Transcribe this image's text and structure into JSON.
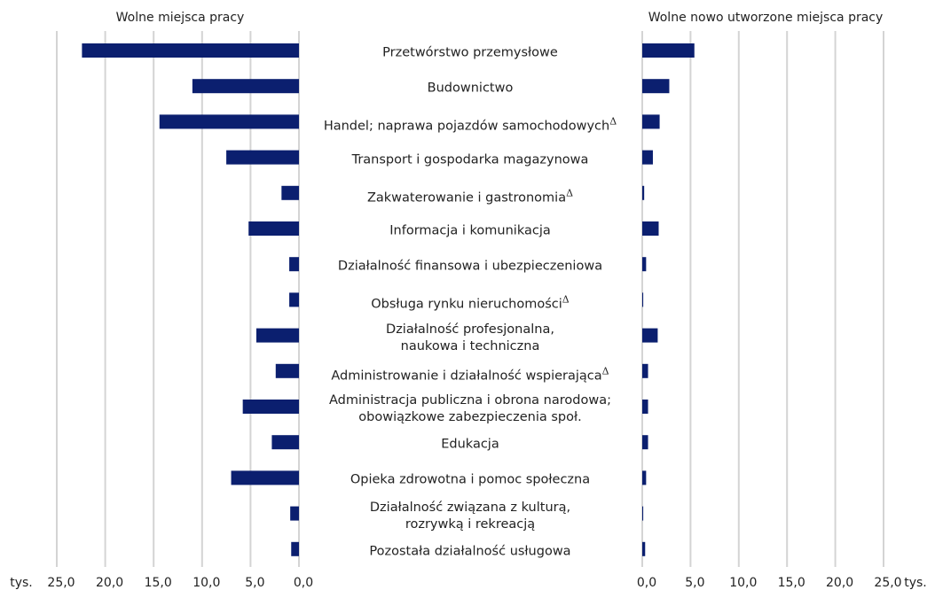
{
  "chart_data": {
    "type": "butterfly-bar",
    "axis_unit": "tys.",
    "categories": [
      "Przetwórstwo przemysłowe",
      "Budownictwo",
      "Handel; naprawa pojazdów samochodowych",
      "Transport i gospodarka magazynowa",
      "Zakwaterowanie i gastronomia",
      "Informacja i komunikacja",
      "Działalność finansowa i ubezpieczeniowa",
      "Obsługa rynku nieruchomości",
      "Działalność profesjonalna,\nnaukowa i techniczna",
      "Administrowanie i działalność wspierająca",
      "Administracja publiczna i obrona narodowa;\nobowiązkowe zabezpieczenia społ.",
      "Edukacja",
      "Opieka zdrowotna i pomoc społeczna",
      "Działalność związana z kulturą,\nrozrywką i rekreacją",
      "Pozostała działalność usługowa"
    ],
    "category_marks": [
      null,
      null,
      "Δ",
      null,
      "Δ",
      null,
      null,
      "Δ",
      null,
      "Δ",
      null,
      null,
      null,
      null,
      null
    ],
    "grid": true,
    "series": [
      {
        "name": "Wolne miejsca pracy",
        "color": "#0b1f6f",
        "values": [
          22.4,
          11.0,
          14.4,
          7.5,
          1.8,
          5.2,
          1.0,
          1.0,
          4.4,
          2.4,
          5.8,
          2.8,
          7.0,
          0.9,
          0.8
        ],
        "xlim": [
          25,
          0
        ],
        "xticks": [
          {
            "value": 25,
            "label": "25,0"
          },
          {
            "value": 20,
            "label": "20,0"
          },
          {
            "value": 15,
            "label": "15,0"
          },
          {
            "value": 10,
            "label": "10,0"
          },
          {
            "value": 5,
            "label": "5,0"
          },
          {
            "value": 0,
            "label": "0,0"
          }
        ]
      },
      {
        "name": "Wolne nowo utworzone miejsca pracy",
        "color": "#0b1f6f",
        "values": [
          5.4,
          2.8,
          1.8,
          1.1,
          0.2,
          1.7,
          0.4,
          0.1,
          1.6,
          0.6,
          0.6,
          0.6,
          0.4,
          0.1,
          0.3
        ],
        "xlim": [
          0,
          25
        ],
        "xticks": [
          {
            "value": 0,
            "label": "0,0"
          },
          {
            "value": 5,
            "label": "5,0"
          },
          {
            "value": 10,
            "label": "10,0"
          },
          {
            "value": 15,
            "label": "15,0"
          },
          {
            "value": 20,
            "label": "20,0"
          },
          {
            "value": 25,
            "label": "25,0"
          }
        ]
      }
    ]
  }
}
